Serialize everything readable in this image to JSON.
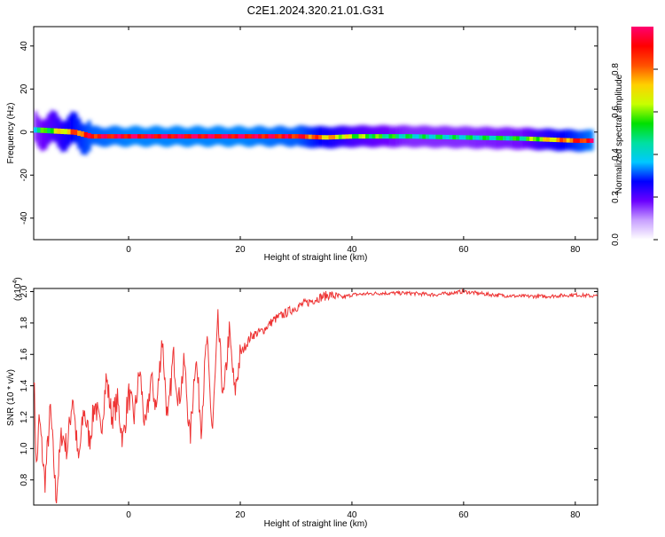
{
  "title": "C2E1.2024.320.21.01.G31",
  "chart_data": [
    {
      "type": "heatmap",
      "xlabel": "Height of straight line (km)",
      "ylabel": "Frequency (Hz)",
      "xlim": [
        -17,
        84
      ],
      "ylim": [
        -50,
        49
      ],
      "x_ticks": [
        0,
        20,
        40,
        60,
        80
      ],
      "x_tick_labels": [
        "0",
        "20",
        "40",
        "60",
        "80"
      ],
      "y_ticks": [
        40,
        20,
        0,
        -20,
        -40
      ],
      "y_tick_labels": [
        "40",
        "20",
        "0",
        "-20",
        "-40"
      ],
      "colorbar": {
        "label": "Normalized spectral amplitude",
        "range": [
          0,
          1
        ],
        "ticks": [
          0.0,
          0.2,
          0.4,
          0.6,
          0.8
        ],
        "tick_labels": [
          "0.0",
          "0.2",
          "0.4",
          "0.6",
          "0.8"
        ],
        "colors": [
          "#ffffff",
          "#c8a0ff",
          "#6a00ff",
          "#0000ff",
          "#00c8ff",
          "#00e0a0",
          "#00e000",
          "#c8ff00",
          "#ffd000",
          "#ff5000",
          "#ff0000",
          "#ff0070"
        ]
      },
      "band": {
        "x": [
          -17,
          -10,
          -7,
          0,
          10,
          20,
          30,
          35,
          40,
          50,
          60,
          70,
          75,
          80,
          83
        ],
        "center_hz": [
          1,
          0,
          -2,
          -2,
          -2,
          -2,
          -2,
          -2.5,
          -2,
          -2,
          -2.5,
          -3,
          -3.5,
          -4,
          -4
        ],
        "amplitude": [
          0.45,
          0.8,
          0.9,
          0.95,
          0.95,
          0.95,
          0.9,
          0.75,
          0.6,
          0.45,
          0.45,
          0.5,
          0.7,
          0.85,
          0.95
        ]
      }
    },
    {
      "type": "line",
      "xlabel": "Height of straight line (km)",
      "ylabel": "SNR (10 * v/v)",
      "y_multiplier": "(x10",
      "y_multiplier_exp": "4",
      "xlim": [
        -17,
        84
      ],
      "ylim": [
        0.64,
        2.02
      ],
      "x_ticks": [
        0,
        20,
        40,
        60,
        80
      ],
      "x_tick_labels": [
        "0",
        "20",
        "40",
        "60",
        "80"
      ],
      "y_ticks": [
        0.8,
        1.0,
        1.2,
        1.4,
        1.6,
        1.8,
        2.0
      ],
      "y_tick_labels": [
        "0.8",
        "1.0",
        "1.2",
        "1.4",
        "1.6",
        "1.8",
        "2.0"
      ],
      "color": "#ee3333",
      "series": [
        {
          "x": [
            -17,
            -16.5,
            -16,
            -15,
            -14,
            -13,
            -12,
            -11,
            -10,
            -9,
            -8,
            -7,
            -6,
            -5,
            -4,
            -3,
            -2,
            -1,
            0,
            1,
            2,
            3,
            4,
            5,
            6,
            7,
            8,
            9,
            10,
            11,
            12,
            13,
            14,
            15,
            16,
            17,
            18,
            19,
            20,
            22,
            24,
            26,
            28,
            30,
            32,
            34,
            36,
            38,
            40,
            45,
            50,
            55,
            60,
            65,
            70,
            75,
            80,
            84
          ],
          "y": [
            1.5,
            0.85,
            1.2,
            0.78,
            1.25,
            0.68,
            1.1,
            1.0,
            1.35,
            0.9,
            1.25,
            1.05,
            1.3,
            1.1,
            1.45,
            1.2,
            1.3,
            1.05,
            1.35,
            1.2,
            1.5,
            1.1,
            1.45,
            1.25,
            1.72,
            1.15,
            1.6,
            1.3,
            1.55,
            1.05,
            1.6,
            1.15,
            1.7,
            1.1,
            1.8,
            1.3,
            1.75,
            1.35,
            1.6,
            1.72,
            1.75,
            1.82,
            1.86,
            1.9,
            1.93,
            1.96,
            1.98,
            1.96,
            1.98,
            1.99,
            1.99,
            1.98,
            2.0,
            1.98,
            1.97,
            1.97,
            1.98,
            1.97
          ]
        }
      ]
    }
  ]
}
